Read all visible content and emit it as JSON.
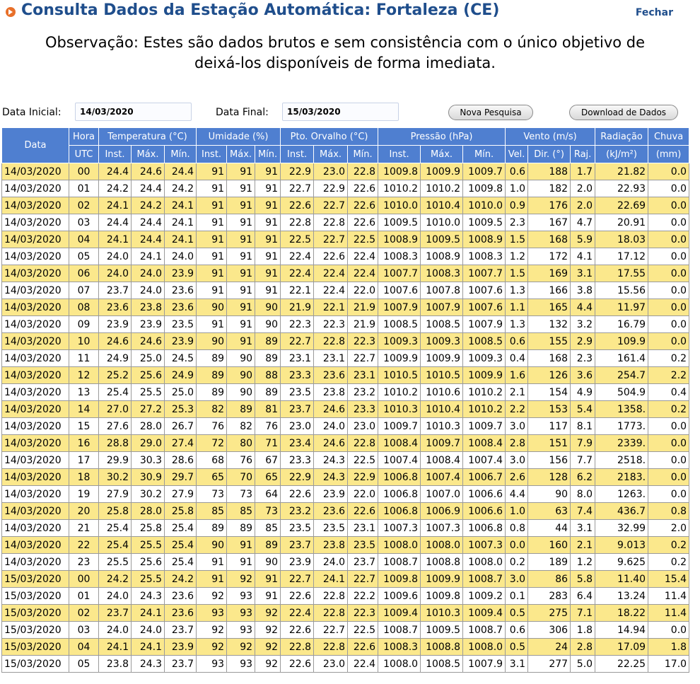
{
  "header": {
    "title": "Consulta Dados da Estação Automática: Fortaleza (CE)",
    "close_label": "Fechar"
  },
  "note": {
    "line1": "Observação: Estes são dados brutos e sem consistência com o único objetivo de",
    "line2": "deixá-los disponíveis de forma imediata."
  },
  "form": {
    "start_label": "Data Inicial:",
    "start_value": "14/03/2020",
    "end_label": "Data Final:",
    "end_value": "15/03/2020",
    "search_button": "Nova Pesquisa",
    "download_button": "Download de Dados"
  },
  "table": {
    "groups": [
      "Data",
      "Hora",
      "Temperatura (°C)",
      "Umidade (%)",
      "Pto. Orvalho (°C)",
      "Pressão (hPa)",
      "Vento (m/s)",
      "Radiação",
      "Chuva"
    ],
    "subheaders": [
      "UTC",
      "Inst.",
      "Máx.",
      "Mín.",
      "Inst.",
      "Máx.",
      "Mín.",
      "Inst.",
      "Máx.",
      "Mín.",
      "Inst.",
      "Máx.",
      "Mín.",
      "Vel.",
      "Dir. (°)",
      "Raj.",
      "(kJ/m²)",
      "(mm)"
    ],
    "rows": [
      [
        "14/03/2020",
        "00",
        "24.4",
        "24.6",
        "24.4",
        "91",
        "91",
        "91",
        "22.9",
        "23.0",
        "22.8",
        "1009.8",
        "1009.9",
        "1009.7",
        "0.6",
        "188",
        "1.7",
        "21.82",
        "0.0"
      ],
      [
        "14/03/2020",
        "01",
        "24.2",
        "24.4",
        "24.2",
        "91",
        "91",
        "91",
        "22.7",
        "22.9",
        "22.6",
        "1010.2",
        "1010.2",
        "1009.8",
        "1.0",
        "182",
        "2.0",
        "22.93",
        "0.0"
      ],
      [
        "14/03/2020",
        "02",
        "24.1",
        "24.2",
        "24.1",
        "91",
        "91",
        "91",
        "22.6",
        "22.7",
        "22.6",
        "1010.0",
        "1010.4",
        "1010.0",
        "0.9",
        "176",
        "2.0",
        "22.69",
        "0.0"
      ],
      [
        "14/03/2020",
        "03",
        "24.4",
        "24.4",
        "24.1",
        "91",
        "91",
        "91",
        "22.8",
        "22.8",
        "22.6",
        "1009.5",
        "1010.0",
        "1009.5",
        "2.3",
        "167",
        "4.7",
        "20.91",
        "0.0"
      ],
      [
        "14/03/2020",
        "04",
        "24.1",
        "24.4",
        "24.1",
        "91",
        "91",
        "91",
        "22.5",
        "22.7",
        "22.5",
        "1008.9",
        "1009.5",
        "1008.9",
        "1.5",
        "168",
        "5.9",
        "18.03",
        "0.0"
      ],
      [
        "14/03/2020",
        "05",
        "24.0",
        "24.1",
        "24.0",
        "91",
        "91",
        "91",
        "22.4",
        "22.6",
        "22.4",
        "1008.3",
        "1008.9",
        "1008.3",
        "1.2",
        "172",
        "4.1",
        "17.12",
        "0.0"
      ],
      [
        "14/03/2020",
        "06",
        "24.0",
        "24.0",
        "23.9",
        "91",
        "91",
        "91",
        "22.4",
        "22.4",
        "22.4",
        "1007.7",
        "1008.3",
        "1007.7",
        "1.5",
        "169",
        "3.1",
        "17.55",
        "0.0"
      ],
      [
        "14/03/2020",
        "07",
        "23.7",
        "24.0",
        "23.6",
        "91",
        "91",
        "91",
        "22.1",
        "22.4",
        "22.0",
        "1007.6",
        "1007.8",
        "1007.6",
        "1.3",
        "166",
        "3.8",
        "15.56",
        "0.0"
      ],
      [
        "14/03/2020",
        "08",
        "23.6",
        "23.8",
        "23.6",
        "90",
        "91",
        "90",
        "21.9",
        "22.1",
        "21.9",
        "1007.9",
        "1007.9",
        "1007.6",
        "1.1",
        "165",
        "4.4",
        "11.97",
        "0.0"
      ],
      [
        "14/03/2020",
        "09",
        "23.9",
        "23.9",
        "23.5",
        "91",
        "91",
        "90",
        "22.3",
        "22.3",
        "21.9",
        "1008.5",
        "1008.5",
        "1007.9",
        "1.3",
        "132",
        "3.2",
        "16.79",
        "0.0"
      ],
      [
        "14/03/2020",
        "10",
        "24.6",
        "24.6",
        "23.9",
        "90",
        "91",
        "89",
        "22.7",
        "22.8",
        "22.3",
        "1009.3",
        "1009.3",
        "1008.5",
        "0.6",
        "155",
        "2.9",
        "109.9",
        "0.0"
      ],
      [
        "14/03/2020",
        "11",
        "24.9",
        "25.0",
        "24.5",
        "89",
        "90",
        "89",
        "23.1",
        "23.1",
        "22.7",
        "1009.9",
        "1009.9",
        "1009.3",
        "0.4",
        "168",
        "2.3",
        "161.4",
        "0.2"
      ],
      [
        "14/03/2020",
        "12",
        "25.2",
        "25.6",
        "24.9",
        "89",
        "90",
        "88",
        "23.3",
        "23.6",
        "23.1",
        "1010.5",
        "1010.5",
        "1009.9",
        "1.6",
        "126",
        "3.6",
        "254.7",
        "2.2"
      ],
      [
        "14/03/2020",
        "13",
        "25.4",
        "25.5",
        "25.0",
        "89",
        "90",
        "89",
        "23.5",
        "23.8",
        "23.2",
        "1010.2",
        "1010.6",
        "1010.2",
        "2.1",
        "154",
        "4.9",
        "504.9",
        "0.4"
      ],
      [
        "14/03/2020",
        "14",
        "27.0",
        "27.2",
        "25.3",
        "82",
        "89",
        "81",
        "23.7",
        "24.6",
        "23.3",
        "1010.3",
        "1010.4",
        "1010.2",
        "2.2",
        "153",
        "5.4",
        "1358.",
        "0.2"
      ],
      [
        "14/03/2020",
        "15",
        "27.6",
        "28.0",
        "26.7",
        "76",
        "82",
        "76",
        "23.0",
        "24.0",
        "23.0",
        "1009.7",
        "1010.3",
        "1009.7",
        "3.0",
        "117",
        "8.1",
        "1773.",
        "0.0"
      ],
      [
        "14/03/2020",
        "16",
        "28.8",
        "29.0",
        "27.4",
        "72",
        "80",
        "71",
        "23.4",
        "24.6",
        "22.8",
        "1008.4",
        "1009.7",
        "1008.4",
        "2.8",
        "151",
        "7.9",
        "2339.",
        "0.0"
      ],
      [
        "14/03/2020",
        "17",
        "29.9",
        "30.3",
        "28.6",
        "68",
        "76",
        "67",
        "23.3",
        "24.3",
        "22.5",
        "1007.4",
        "1008.4",
        "1007.4",
        "3.0",
        "156",
        "7.7",
        "2518.",
        "0.0"
      ],
      [
        "14/03/2020",
        "18",
        "30.2",
        "30.9",
        "29.7",
        "65",
        "70",
        "65",
        "22.9",
        "24.3",
        "22.9",
        "1006.8",
        "1007.4",
        "1006.7",
        "2.6",
        "128",
        "6.2",
        "2183.",
        "0.0"
      ],
      [
        "14/03/2020",
        "19",
        "27.9",
        "30.2",
        "27.9",
        "73",
        "73",
        "64",
        "22.6",
        "23.9",
        "22.0",
        "1006.8",
        "1007.0",
        "1006.6",
        "4.4",
        "90",
        "8.0",
        "1263.",
        "0.0"
      ],
      [
        "14/03/2020",
        "20",
        "25.8",
        "28.0",
        "25.8",
        "85",
        "85",
        "73",
        "23.2",
        "23.6",
        "22.6",
        "1006.8",
        "1006.9",
        "1006.6",
        "1.0",
        "63",
        "7.4",
        "436.7",
        "0.8"
      ],
      [
        "14/03/2020",
        "21",
        "25.4",
        "25.8",
        "25.4",
        "89",
        "89",
        "85",
        "23.5",
        "23.5",
        "23.1",
        "1007.3",
        "1007.3",
        "1006.8",
        "0.8",
        "44",
        "3.1",
        "32.99",
        "2.0"
      ],
      [
        "14/03/2020",
        "22",
        "25.4",
        "25.5",
        "25.4",
        "90",
        "91",
        "89",
        "23.7",
        "23.8",
        "23.5",
        "1008.0",
        "1008.0",
        "1007.3",
        "0.0",
        "160",
        "2.1",
        "9.013",
        "0.2"
      ],
      [
        "14/03/2020",
        "23",
        "25.5",
        "25.6",
        "25.4",
        "91",
        "91",
        "90",
        "23.9",
        "24.0",
        "23.7",
        "1008.7",
        "1008.8",
        "1008.0",
        "0.2",
        "189",
        "1.2",
        "9.625",
        "0.2"
      ],
      [
        "15/03/2020",
        "00",
        "24.2",
        "25.5",
        "24.2",
        "91",
        "92",
        "91",
        "22.7",
        "24.1",
        "22.7",
        "1009.8",
        "1009.9",
        "1008.7",
        "3.0",
        "86",
        "5.8",
        "11.40",
        "15.4"
      ],
      [
        "15/03/2020",
        "01",
        "24.0",
        "24.3",
        "23.6",
        "92",
        "93",
        "91",
        "22.6",
        "22.8",
        "22.2",
        "1009.6",
        "1009.8",
        "1009.2",
        "0.1",
        "283",
        "6.4",
        "13.24",
        "11.4"
      ],
      [
        "15/03/2020",
        "02",
        "23.7",
        "24.1",
        "23.6",
        "93",
        "93",
        "92",
        "22.4",
        "22.8",
        "22.3",
        "1009.4",
        "1010.3",
        "1009.4",
        "0.5",
        "275",
        "7.1",
        "18.22",
        "11.4"
      ],
      [
        "15/03/2020",
        "03",
        "24.0",
        "24.0",
        "23.7",
        "92",
        "93",
        "92",
        "22.6",
        "22.7",
        "22.5",
        "1008.7",
        "1009.5",
        "1008.7",
        "0.6",
        "306",
        "1.8",
        "14.94",
        "0.0"
      ],
      [
        "15/03/2020",
        "04",
        "24.1",
        "24.1",
        "23.9",
        "92",
        "92",
        "92",
        "22.8",
        "22.8",
        "22.6",
        "1008.3",
        "1008.8",
        "1008.0",
        "0.5",
        "24",
        "2.8",
        "17.09",
        "1.8"
      ],
      [
        "15/03/2020",
        "05",
        "23.8",
        "24.3",
        "23.7",
        "93",
        "93",
        "92",
        "22.6",
        "23.0",
        "22.4",
        "1008.0",
        "1008.5",
        "1007.9",
        "3.1",
        "277",
        "5.0",
        "22.25",
        "17.0"
      ]
    ]
  }
}
